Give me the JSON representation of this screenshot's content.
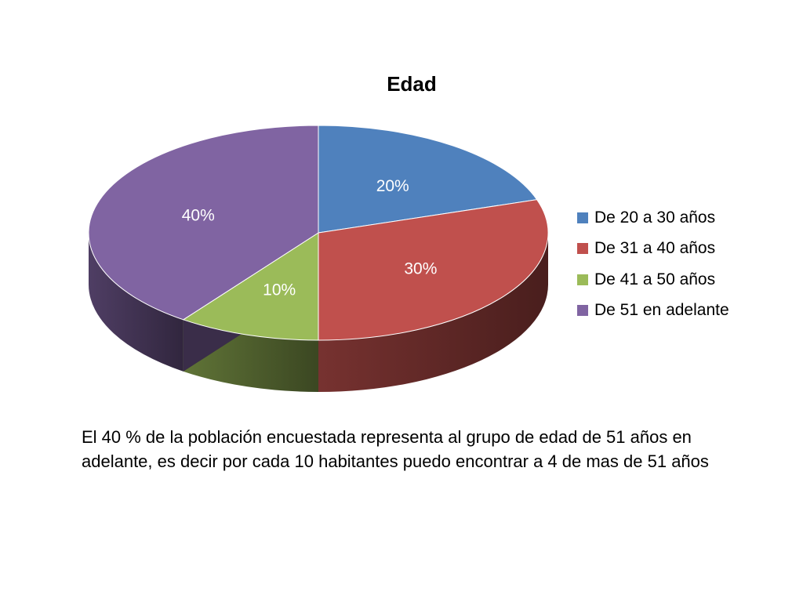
{
  "chart_data": {
    "type": "pie",
    "title": "Edad",
    "categories": [
      "De 20 a 30 años",
      "De 31 a 40 años",
      "De 41 a 50 años",
      "De 51 en adelante"
    ],
    "values": [
      20,
      30,
      10,
      40
    ],
    "data_labels": [
      "20%",
      "30%",
      "10%",
      "40%"
    ],
    "colors": [
      "#4F81BD",
      "#C0504D",
      "#9BBB59",
      "#8064A2"
    ],
    "legend_position": "right",
    "style": "3d"
  },
  "caption": "El 40 % de la población encuestada representa al grupo de edad de 51 años en adelante, es decir por cada 10 habitantes puedo encontrar a 4 de mas de 51 años"
}
